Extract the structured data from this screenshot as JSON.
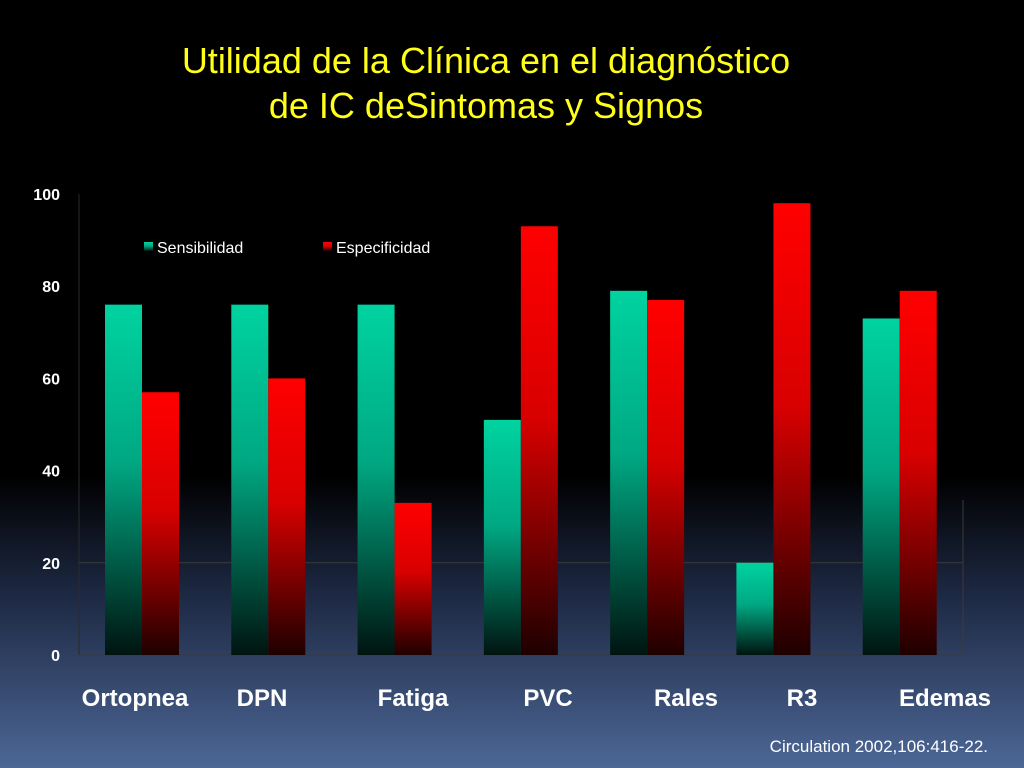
{
  "slide": {
    "title_line1": "Utilidad de la Clínica en el diagnóstico",
    "title_line2": "de IC deSintomas y Signos",
    "citation": "Circulation 2002,106:416-22."
  },
  "colors": {
    "title": "#ffff1a",
    "sensibilidad": "#00d3a0",
    "especificidad": "#ff0000",
    "background": "#000000"
  },
  "chart_data": {
    "type": "bar",
    "title": "",
    "xlabel": "",
    "ylabel": "",
    "categories": [
      "Ortopnea",
      "DPN",
      "Fatiga",
      "PVC",
      "Rales",
      "R3",
      "Edemas"
    ],
    "series": [
      {
        "name": "Sensibilidad",
        "values": [
          76,
          76,
          76,
          51,
          79,
          20,
          73
        ]
      },
      {
        "name": "Especificidad",
        "values": [
          57,
          60,
          33,
          93,
          77,
          98,
          79
        ]
      }
    ],
    "ylim": [
      0,
      100
    ],
    "yticks": [
      0,
      20,
      40,
      60,
      80,
      100
    ],
    "legend_position": "top-left",
    "grid": false,
    "bar_style": "gradient fading to dark at base"
  }
}
